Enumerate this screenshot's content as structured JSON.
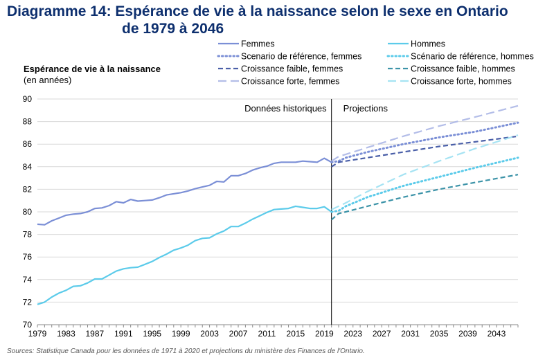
{
  "title_line1": "Diagramme 14: Espérance de vie à la naissance selon le sexe en Ontario",
  "title_line2": "de 1979 à 2046",
  "source": "Sources: Statistique Canada pour les données de 1971 à 2020 et projections du ministère des Finances de l'Ontario.",
  "chart_data": {
    "type": "line",
    "ylabel": "Espérance de vie à la naissance",
    "ylabel_unit": "(en années)",
    "ylim": [
      70,
      90
    ],
    "yticks": [
      70,
      72,
      74,
      76,
      78,
      80,
      82,
      84,
      86,
      88,
      90
    ],
    "xlim": [
      1979,
      2046
    ],
    "xticks": [
      1979,
      1983,
      1987,
      1991,
      1995,
      1999,
      2003,
      2007,
      2011,
      2015,
      2019,
      2023,
      2027,
      2031,
      2035,
      2039,
      2043
    ],
    "grid": "horizontal",
    "legend_position": "top-right",
    "annotations": {
      "historical": "Données historiques",
      "projections": "Projections"
    },
    "divider_x": 2020,
    "colors": {
      "femmes": "#7b8fd6",
      "hommes": "#5ccbea",
      "femmes_dark": "#4a5fa8",
      "hommes_dark": "#3c93a8"
    },
    "series": [
      {
        "name": "Femmes",
        "style": "solid",
        "color": "#7b8fd6",
        "x": [
          1979,
          1980,
          1981,
          1982,
          1983,
          1984,
          1985,
          1986,
          1987,
          1988,
          1989,
          1990,
          1991,
          1992,
          1993,
          1994,
          1995,
          1996,
          1997,
          1998,
          1999,
          2000,
          2001,
          2002,
          2003,
          2004,
          2005,
          2006,
          2007,
          2008,
          2009,
          2010,
          2011,
          2012,
          2013,
          2014,
          2015,
          2016,
          2017,
          2018,
          2019,
          2020
        ],
        "y": [
          78.9,
          78.85,
          79.2,
          79.45,
          79.7,
          79.8,
          79.85,
          80.0,
          80.3,
          80.35,
          80.55,
          80.9,
          80.8,
          81.1,
          80.95,
          81.0,
          81.05,
          81.25,
          81.5,
          81.6,
          81.7,
          81.85,
          82.05,
          82.2,
          82.35,
          82.7,
          82.65,
          83.2,
          83.2,
          83.4,
          83.7,
          83.9,
          84.05,
          84.3,
          84.4,
          84.4,
          84.4,
          84.5,
          84.45,
          84.4,
          84.75,
          84.4
        ]
      },
      {
        "name": "Hommes",
        "style": "solid",
        "color": "#5ccbea",
        "x": [
          1979,
          1980,
          1981,
          1982,
          1983,
          1984,
          1985,
          1986,
          1987,
          1988,
          1989,
          1990,
          1991,
          1992,
          1993,
          1994,
          1995,
          1996,
          1997,
          1998,
          1999,
          2000,
          2001,
          2002,
          2003,
          2004,
          2005,
          2006,
          2007,
          2008,
          2009,
          2010,
          2011,
          2012,
          2013,
          2014,
          2015,
          2016,
          2017,
          2018,
          2019,
          2020
        ],
        "y": [
          71.8,
          72.0,
          72.45,
          72.8,
          73.05,
          73.4,
          73.45,
          73.7,
          74.05,
          74.05,
          74.4,
          74.75,
          74.95,
          75.05,
          75.1,
          75.35,
          75.6,
          75.95,
          76.25,
          76.6,
          76.8,
          77.05,
          77.45,
          77.65,
          77.7,
          78.05,
          78.3,
          78.7,
          78.7,
          79.0,
          79.35,
          79.65,
          79.95,
          80.2,
          80.25,
          80.3,
          80.5,
          80.4,
          80.3,
          80.3,
          80.45,
          80.0
        ]
      },
      {
        "name": "Scenario de référence, femmes",
        "style": "dotted",
        "color": "#7b8fd6",
        "x": [
          2020,
          2021,
          2022,
          2025,
          2030,
          2035,
          2040,
          2046
        ],
        "y": [
          84.4,
          84.5,
          84.8,
          85.3,
          86.0,
          86.6,
          87.1,
          87.9
        ]
      },
      {
        "name": "Scénario de référence, hommes",
        "style": "dotted",
        "color": "#5ccbea",
        "x": [
          2020,
          2021,
          2022,
          2025,
          2030,
          2035,
          2040,
          2046
        ],
        "y": [
          80.0,
          80.1,
          80.5,
          81.3,
          82.3,
          83.1,
          83.9,
          84.8
        ]
      },
      {
        "name": "Croissance faible, femmes",
        "style": "dashed",
        "color": "#4a5fa8",
        "x": [
          2020,
          2021,
          2022,
          2025,
          2030,
          2035,
          2040,
          2046
        ],
        "y": [
          84.0,
          84.4,
          84.5,
          84.8,
          85.3,
          85.8,
          86.2,
          86.7
        ]
      },
      {
        "name": "Croissance faible, hommes",
        "style": "dashed",
        "color": "#3c93a8",
        "x": [
          2020,
          2021,
          2022,
          2025,
          2030,
          2035,
          2040,
          2046
        ],
        "y": [
          79.3,
          79.85,
          80.0,
          80.5,
          81.3,
          82.0,
          82.6,
          83.3
        ]
      },
      {
        "name": "Croissance forte, femmes",
        "style": "longdash",
        "color": "#b3bde8",
        "x": [
          2020,
          2021,
          2022,
          2025,
          2030,
          2035,
          2040,
          2046
        ],
        "y": [
          84.5,
          84.9,
          85.1,
          85.7,
          86.7,
          87.6,
          88.4,
          89.4
        ]
      },
      {
        "name": "Croissance forte, hommes",
        "style": "longdash",
        "color": "#a6e3f3",
        "x": [
          2020,
          2021,
          2022,
          2025,
          2030,
          2035,
          2040,
          2046
        ],
        "y": [
          80.2,
          80.5,
          80.8,
          81.8,
          83.3,
          84.5,
          85.6,
          86.8
        ]
      }
    ]
  }
}
